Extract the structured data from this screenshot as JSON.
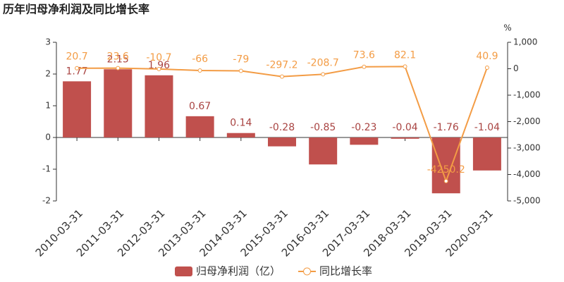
{
  "chart_data": {
    "type": "bar",
    "title": "历年归母净利润及同比增长率",
    "categories": [
      "2010-03-31",
      "2011-03-31",
      "2012-03-31",
      "2013-03-31",
      "2014-03-31",
      "2015-03-31",
      "2016-03-31",
      "2017-03-31",
      "2018-03-31",
      "2019-03-31",
      "2020-03-31"
    ],
    "series": [
      {
        "name": "归母净利润（亿）",
        "type": "bar",
        "color": "#c0504d",
        "values": [
          1.77,
          2.15,
          1.96,
          0.67,
          0.14,
          -0.28,
          -0.85,
          -0.23,
          -0.04,
          -1.76,
          -1.04
        ]
      },
      {
        "name": "同比增长率",
        "type": "line",
        "axis": "y2",
        "color": "#f39c45",
        "values": [
          20.7,
          23.6,
          -10.7,
          -66,
          -79,
          -297.2,
          -208.7,
          73.6,
          82.1,
          -4250.2,
          40.9
        ]
      }
    ],
    "ylim": [
      -2,
      3
    ],
    "yticks": [
      -2,
      -1,
      0,
      1,
      2,
      3
    ],
    "y2label": "%",
    "y2lim": [
      -5000,
      1000
    ],
    "y2ticks": [
      {
        "value": -5000,
        "label": "-5,000"
      },
      {
        "value": -4000,
        "label": "-4,000"
      },
      {
        "value": -3000,
        "label": "-3,000"
      },
      {
        "value": -2000,
        "label": "-2,000"
      },
      {
        "value": -1000,
        "label": "-1,000"
      },
      0,
      {
        "value": 1000,
        "label": "1,000"
      }
    ],
    "legend": "bottom"
  }
}
